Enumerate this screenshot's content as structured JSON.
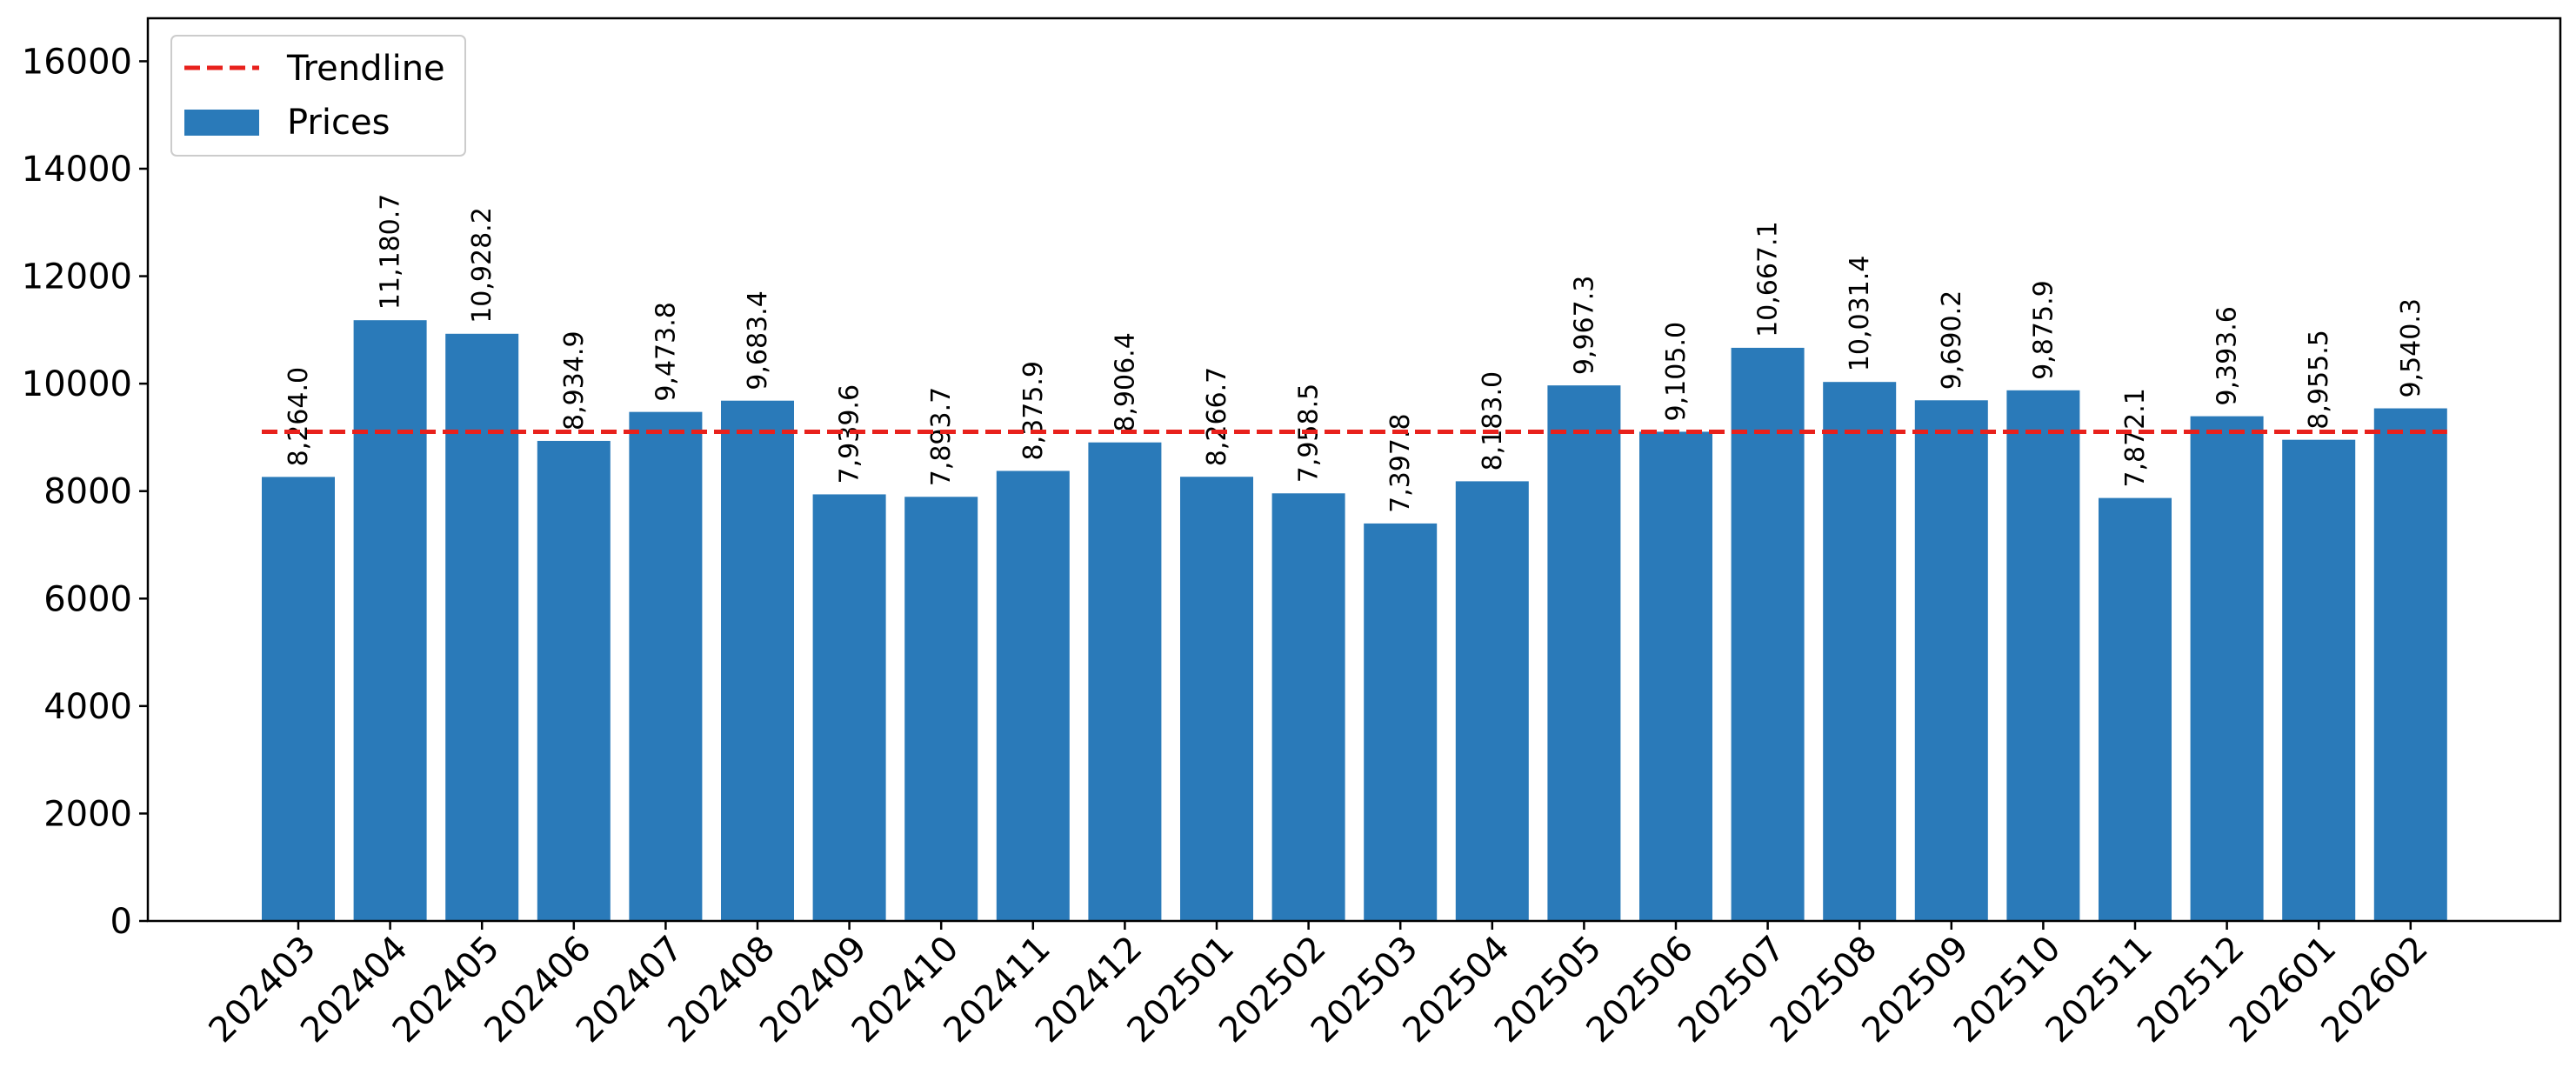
{
  "chart_data": {
    "type": "bar",
    "categories": [
      "202403",
      "202404",
      "202405",
      "202406",
      "202407",
      "202408",
      "202409",
      "202410",
      "202411",
      "202412",
      "202501",
      "202502",
      "202503",
      "202504",
      "202505",
      "202506",
      "202507",
      "202508",
      "202509",
      "202510",
      "202511",
      "202512",
      "202601",
      "202602"
    ],
    "series": [
      {
        "name": "Prices",
        "values": [
          8264.0,
          11180.7,
          10928.2,
          8934.9,
          9473.8,
          9683.4,
          7939.6,
          7893.7,
          8375.9,
          8906.4,
          8266.7,
          7958.5,
          7397.8,
          8183.0,
          9967.3,
          9105.0,
          10667.1,
          10031.4,
          9690.2,
          9875.9,
          7872.1,
          9393.6,
          8955.5,
          9540.3
        ],
        "labels": [
          "8,264.0",
          "11,180.7",
          "10,928.2",
          "8,934.9",
          "9,473.8",
          "9,683.4",
          "7,939.6",
          "7,893.7",
          "8,375.9",
          "8,906.4",
          "8,266.7",
          "7,958.5",
          "7,397.8",
          "8,183.0",
          "9,967.3",
          "9,105.0",
          "10,667.1",
          "10,031.4",
          "9,690.2",
          "9,875.9",
          "7,872.1",
          "9,393.6",
          "8,955.5",
          "9,540.3"
        ],
        "color": "#2a7ab9"
      }
    ],
    "trendline": {
      "name": "Trendline",
      "value": 9103.3,
      "color": "#e8211c",
      "style": "dashed"
    },
    "title": "",
    "xlabel": "",
    "ylabel": "",
    "ylim": [
      0,
      16800
    ],
    "yticks": [
      "0",
      "2000",
      "4000",
      "6000",
      "8000",
      "10000",
      "12000",
      "14000",
      "16000"
    ],
    "ytick_values": [
      0,
      2000,
      4000,
      6000,
      8000,
      10000,
      12000,
      14000,
      16000
    ],
    "legend_position": "top-left",
    "grid": false
  }
}
